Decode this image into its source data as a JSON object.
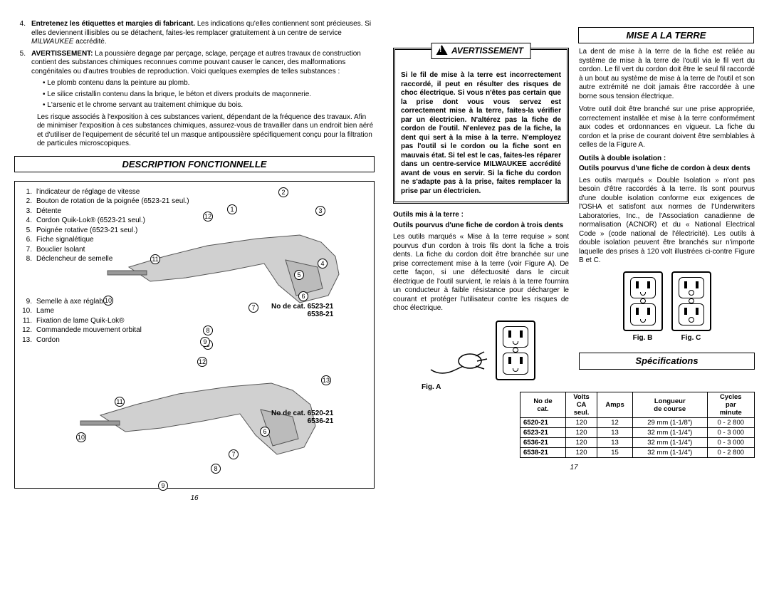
{
  "left": {
    "list": [
      {
        "n": "4.",
        "html": "<b>Entretenez les étiquettes et marqies di fabricant.</b> Les indications qu'elles contiennent sont précieuses. Si elles deviennent illisibles ou se détachent, faites-les remplacer gratuitement à un centre de service <i>MILWAUKEE</i> accrédité."
      },
      {
        "n": "5.",
        "html": "<b>AVERTISSEMENT:</b> La poussière degage par perçage, sclage, perçage et autres travaux de construction contient des substances chimiques reconnues comme pouvant causer le cancer, des malformations congénitales ou d'autres troubles de reproduction. Voici quelques exemples de telles substances :"
      }
    ],
    "bullets": [
      "Le plomb contenu dans la peinture au plomb.",
      "Le silice cristallin contenu dans la brique, le béton et divers produits de maçonnerie.",
      "L'arsenic et le chrome servant au traitement chimique du bois."
    ],
    "risk": "Les risque associés à l'exposition à ces substances varient, dépendant de la fréquence des travaux. Afin de minimiser l'exposition à ces substances chimiques, assurez-vous de travailler dans un endroit bien aéré et d'utiliser de l'equipement de sécurité tel un masque antipoussière spécifiquement conçu pour la filtration de particules microscopiques.",
    "section": "DESCRIPTION FONCTIONNELLE",
    "parts": [
      "l'indicateur de réglage de vitesse",
      "Bouton de rotation de la poignée (6523-21 seul.)",
      "Détente",
      "Cordon Quik-Lok® (6523-21 seul.)",
      "Poignée rotative (6523-21 seul.)",
      "Fiche signalétique",
      "Bouclier Isolant",
      "Déclencheur de semelle",
      "Semelle à axe réglable",
      "Lame",
      "Fixation de lame Quik-Lok®",
      "Commandede mouvement orbital",
      "Cordon"
    ],
    "model1": "No de cat. 6523-21",
    "model1b": "6538-21",
    "model2": "No de cat. 6520-21",
    "model2b": "6536-21",
    "callouts1": [
      [
        1,
        298,
        32
      ],
      [
        2,
        370,
        8
      ],
      [
        3,
        422,
        34
      ],
      [
        4,
        425,
        108
      ],
      [
        5,
        392,
        124
      ],
      [
        6,
        398,
        154
      ],
      [
        7,
        328,
        170
      ],
      [
        8,
        264,
        202
      ],
      [
        10,
        124,
        160
      ],
      [
        11,
        190,
        102
      ],
      [
        12,
        264,
        42
      ]
    ],
    "callouts2": [
      [
        3,
        264,
        222
      ],
      [
        7,
        300,
        376
      ],
      [
        8,
        275,
        396
      ],
      [
        9,
        201,
        420
      ],
      [
        10,
        86,
        352
      ],
      [
        11,
        140,
        302
      ],
      [
        12,
        256,
        246
      ],
      [
        13,
        430,
        272
      ],
      [
        6,
        344,
        344
      ],
      [
        9,
        260,
        218
      ]
    ],
    "pagenum": "16"
  },
  "right": {
    "section": "MISE A LA TERRE",
    "warn_label": "AVERTISSEMENT",
    "warn_body": "Si le fil de mise à la terre est incorrectement raccordé, il peut en résulter des risques de choc électrique. Si vous n'êtes pas certain que la prise dont vous vous servez est correctement mise à la terre, faites-la vérifier par un électricien. N'altérez pas la fiche de cordon de l'outil. N'enlevez pas de la fiche, la dent qui sert à la mise à la terre. N'employez pas l'outil si le cordon ou la fiche sont en mauvais état. Si tel est le cas, faites-les réparer dans un centre-service MILWAUKEE accrédité avant de vous en servir. Si la fiche du cordon ne s'adapte pas à la prise, faites remplacer la prise par un électricien.",
    "sub1": "Outils mis à la terre :",
    "sub1b": "Outils pourvus d'une fiche de cordon à trois dents",
    "para1": "Les outils marqués « Mise à la terre requise » sont pourvus d'un cordon à trois fils dont la fiche a trois dents. La fiche du cordon doit être branchée sur une prise correctement mise à la terre (voir Figure A). De cette façon, si une défectuosité dans le circuit électrique de l'outil survient, le relais à la terre fournira un conducteur à faible résistance pour décharger le courant et protéger l'utilisateur contre les risques de choc électrique.",
    "figA": "Fig. A",
    "r2a": "La dent de mise à la terre de la fiche est reliée au système de mise à la terre de l'outil via le fil vert du cordon. Le fil vert du cordon doit être le seul fil raccordé à un bout au système de mise à la terre de l'outil et son autre extrémité ne doit jamais être raccordée à une borne sous tension électrique.",
    "r2b": "Votre outil doit être branché sur une prise appropriée, correctement installée et mise à la terre conformément aux codes et ordonnances en vigueur. La fiche du cordon et la prise de courant doivent être semblables à celles de la Figure A.",
    "sub2": "Outils à double isolation :",
    "sub2b": "Outils pourvus d'une fiche de cordon à deux dents",
    "para2": "Les outils marqués « Double Isolation » n'ont pas besoin d'être raccordés à la terre. Ils sont pourvus d'une double isolation conforme eux exigences de l'OSHA et satisfont aux normes de l'Underwriters Laboratories, Inc., de l'Association canadienne de normalisation (ACNOR) et du « National Electrical Code » (code national de l'électricité). Les outils à double isolation peuvent être branchés sur n'importe laquelle des prises à 120 volt illustrées ci-contre Figure B et C.",
    "figB": "Fig. B",
    "figC": "Fig. C",
    "specs_header": "Spécifications",
    "specs": {
      "cols": [
        "No de cat.",
        "Volts CA seul.",
        "Amps",
        "Longueur de course",
        "Cycles par minute"
      ],
      "rows": [
        [
          "6520-21",
          "120",
          "12",
          "29 mm (1-1/8\")",
          "0 - 2 800"
        ],
        [
          "6523-21",
          "120",
          "13",
          "32 mm (1-1/4\")",
          "0 - 3 000"
        ],
        [
          "6536-21",
          "120",
          "13",
          "32 mm (1-1/4\")",
          "0 - 3 000"
        ],
        [
          "6538-21",
          "120",
          "15",
          "32 mm (1-1/4\")",
          "0 - 2 800"
        ]
      ]
    },
    "pagenum": "17"
  }
}
